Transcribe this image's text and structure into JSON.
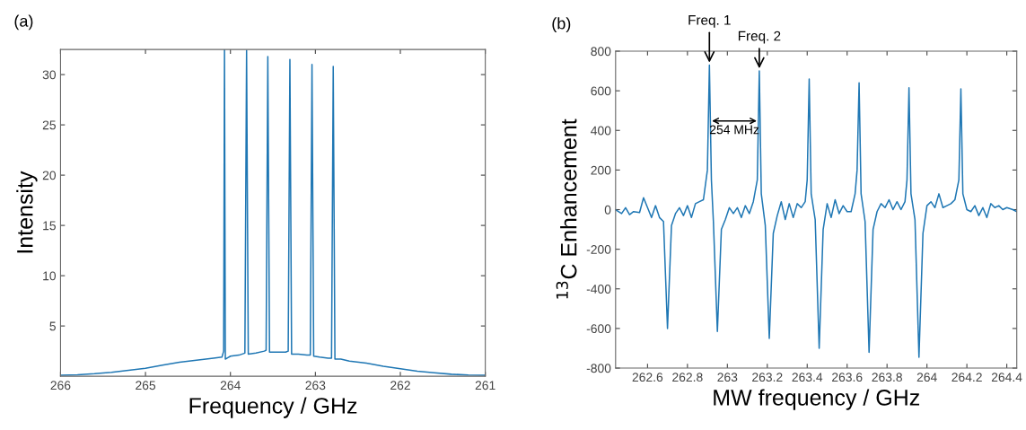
{
  "chart_data": [
    {
      "type": "line",
      "title": "(a)",
      "xlabel": "Frequency / GHz",
      "ylabel": "Intensity",
      "xlim": [
        266,
        261
      ],
      "xticks": [
        266,
        265,
        264,
        263,
        262,
        261
      ],
      "ylim": [
        0,
        32.5
      ],
      "yticks": [
        5,
        10,
        15,
        20,
        25,
        30
      ],
      "grid": false,
      "marker": "none",
      "line_style": "solid",
      "series": [
        {
          "color": "#1f77b4",
          "x": [
            266,
            265.8,
            265.6,
            265.4,
            265.2,
            265.0,
            264.8,
            264.6,
            264.4,
            264.2,
            264.1,
            264.08,
            264.07,
            264.06,
            264.0,
            263.9,
            263.83,
            263.81,
            263.79,
            263.7,
            263.6,
            263.58,
            263.56,
            263.54,
            263.45,
            263.35,
            263.32,
            263.3,
            263.28,
            263.2,
            263.1,
            263.06,
            263.04,
            263.02,
            262.95,
            262.85,
            262.81,
            262.79,
            262.77,
            262.7,
            262.6,
            262.4,
            262.2,
            262.0,
            261.8,
            261.6,
            261.4,
            261.2,
            261.0
          ],
          "values": [
            0.1,
            0.15,
            0.25,
            0.4,
            0.6,
            0.8,
            1.1,
            1.4,
            1.6,
            1.8,
            1.9,
            2.5,
            32.5,
            1.7,
            2.0,
            2.1,
            2.3,
            32.4,
            2.2,
            2.3,
            2.5,
            2.6,
            31.8,
            2.4,
            2.4,
            2.4,
            2.5,
            31.5,
            2.2,
            2.2,
            2.1,
            2.1,
            31.0,
            2.0,
            1.9,
            1.8,
            1.8,
            30.8,
            1.7,
            1.7,
            1.5,
            1.3,
            1.0,
            0.75,
            0.5,
            0.35,
            0.2,
            0.12,
            0.1
          ]
        }
      ]
    },
    {
      "type": "line",
      "title": "(b)",
      "xlabel": "MW frequency / GHz",
      "ylabel": "$^{13}$C Enhancement",
      "xlim": [
        262.44,
        264.45
      ],
      "xticks": [
        262.6,
        262.8,
        263,
        263.2,
        263.4,
        263.6,
        263.8,
        264,
        264.2,
        264.4
      ],
      "ylim": [
        -800,
        800
      ],
      "yticks": [
        -800,
        -600,
        -400,
        -200,
        0,
        200,
        400,
        600,
        800
      ],
      "grid": false,
      "marker": "none",
      "line_style": "solid",
      "annotations": [
        {
          "text": "Freq. 1",
          "x": 262.91,
          "y": 730
        },
        {
          "text": "Freq. 2",
          "x": 263.16,
          "y": 700
        },
        "254 MHz"
      ],
      "series": [
        {
          "color": "#1f77b4",
          "x": [
            262.44,
            262.47,
            262.49,
            262.51,
            262.53,
            262.56,
            262.58,
            262.6,
            262.62,
            262.64,
            262.66,
            262.68,
            262.7,
            262.72,
            262.74,
            262.76,
            262.78,
            262.8,
            262.82,
            262.84,
            262.86,
            262.88,
            262.9,
            262.91,
            262.92,
            262.93,
            262.95,
            262.97,
            262.99,
            263.01,
            263.03,
            263.05,
            263.07,
            263.09,
            263.11,
            263.13,
            263.15,
            263.16,
            263.17,
            263.19,
            263.21,
            263.23,
            263.25,
            263.27,
            263.29,
            263.31,
            263.33,
            263.35,
            263.37,
            263.39,
            263.4,
            263.41,
            263.42,
            263.44,
            263.46,
            263.48,
            263.5,
            263.52,
            263.54,
            263.56,
            263.58,
            263.6,
            263.62,
            263.64,
            263.65,
            263.66,
            263.67,
            263.69,
            263.71,
            263.73,
            263.75,
            263.77,
            263.79,
            263.81,
            263.83,
            263.85,
            263.87,
            263.89,
            263.9,
            263.91,
            263.92,
            263.94,
            263.96,
            263.98,
            264.0,
            264.02,
            264.04,
            264.06,
            264.08,
            264.1,
            264.12,
            264.14,
            264.16,
            264.17,
            264.18,
            264.2,
            264.22,
            264.24,
            264.26,
            264.28,
            264.3,
            264.32,
            264.34,
            264.36,
            264.38,
            264.4,
            264.43,
            264.45
          ],
          "values": [
            0,
            -20,
            10,
            -25,
            -10,
            -15,
            60,
            10,
            -40,
            20,
            -40,
            -60,
            -600,
            -80,
            -20,
            10,
            -30,
            20,
            -40,
            30,
            40,
            50,
            200,
            730,
            150,
            -60,
            -615,
            -100,
            -50,
            10,
            -20,
            10,
            -40,
            20,
            -20,
            40,
            150,
            700,
            80,
            -80,
            -650,
            -120,
            -30,
            40,
            -50,
            30,
            -40,
            30,
            10,
            40,
            150,
            660,
            80,
            -50,
            -700,
            -100,
            30,
            -40,
            50,
            -20,
            20,
            -10,
            -10,
            80,
            200,
            640,
            80,
            -60,
            -720,
            -100,
            -10,
            30,
            10,
            50,
            0,
            40,
            0,
            40,
            150,
            615,
            80,
            -50,
            -745,
            -120,
            20,
            40,
            10,
            80,
            10,
            20,
            30,
            50,
            150,
            610,
            80,
            0,
            -10,
            20,
            -30,
            10,
            -40,
            30,
            10,
            20,
            0,
            10,
            0,
            -10
          ]
        }
      ]
    }
  ]
}
